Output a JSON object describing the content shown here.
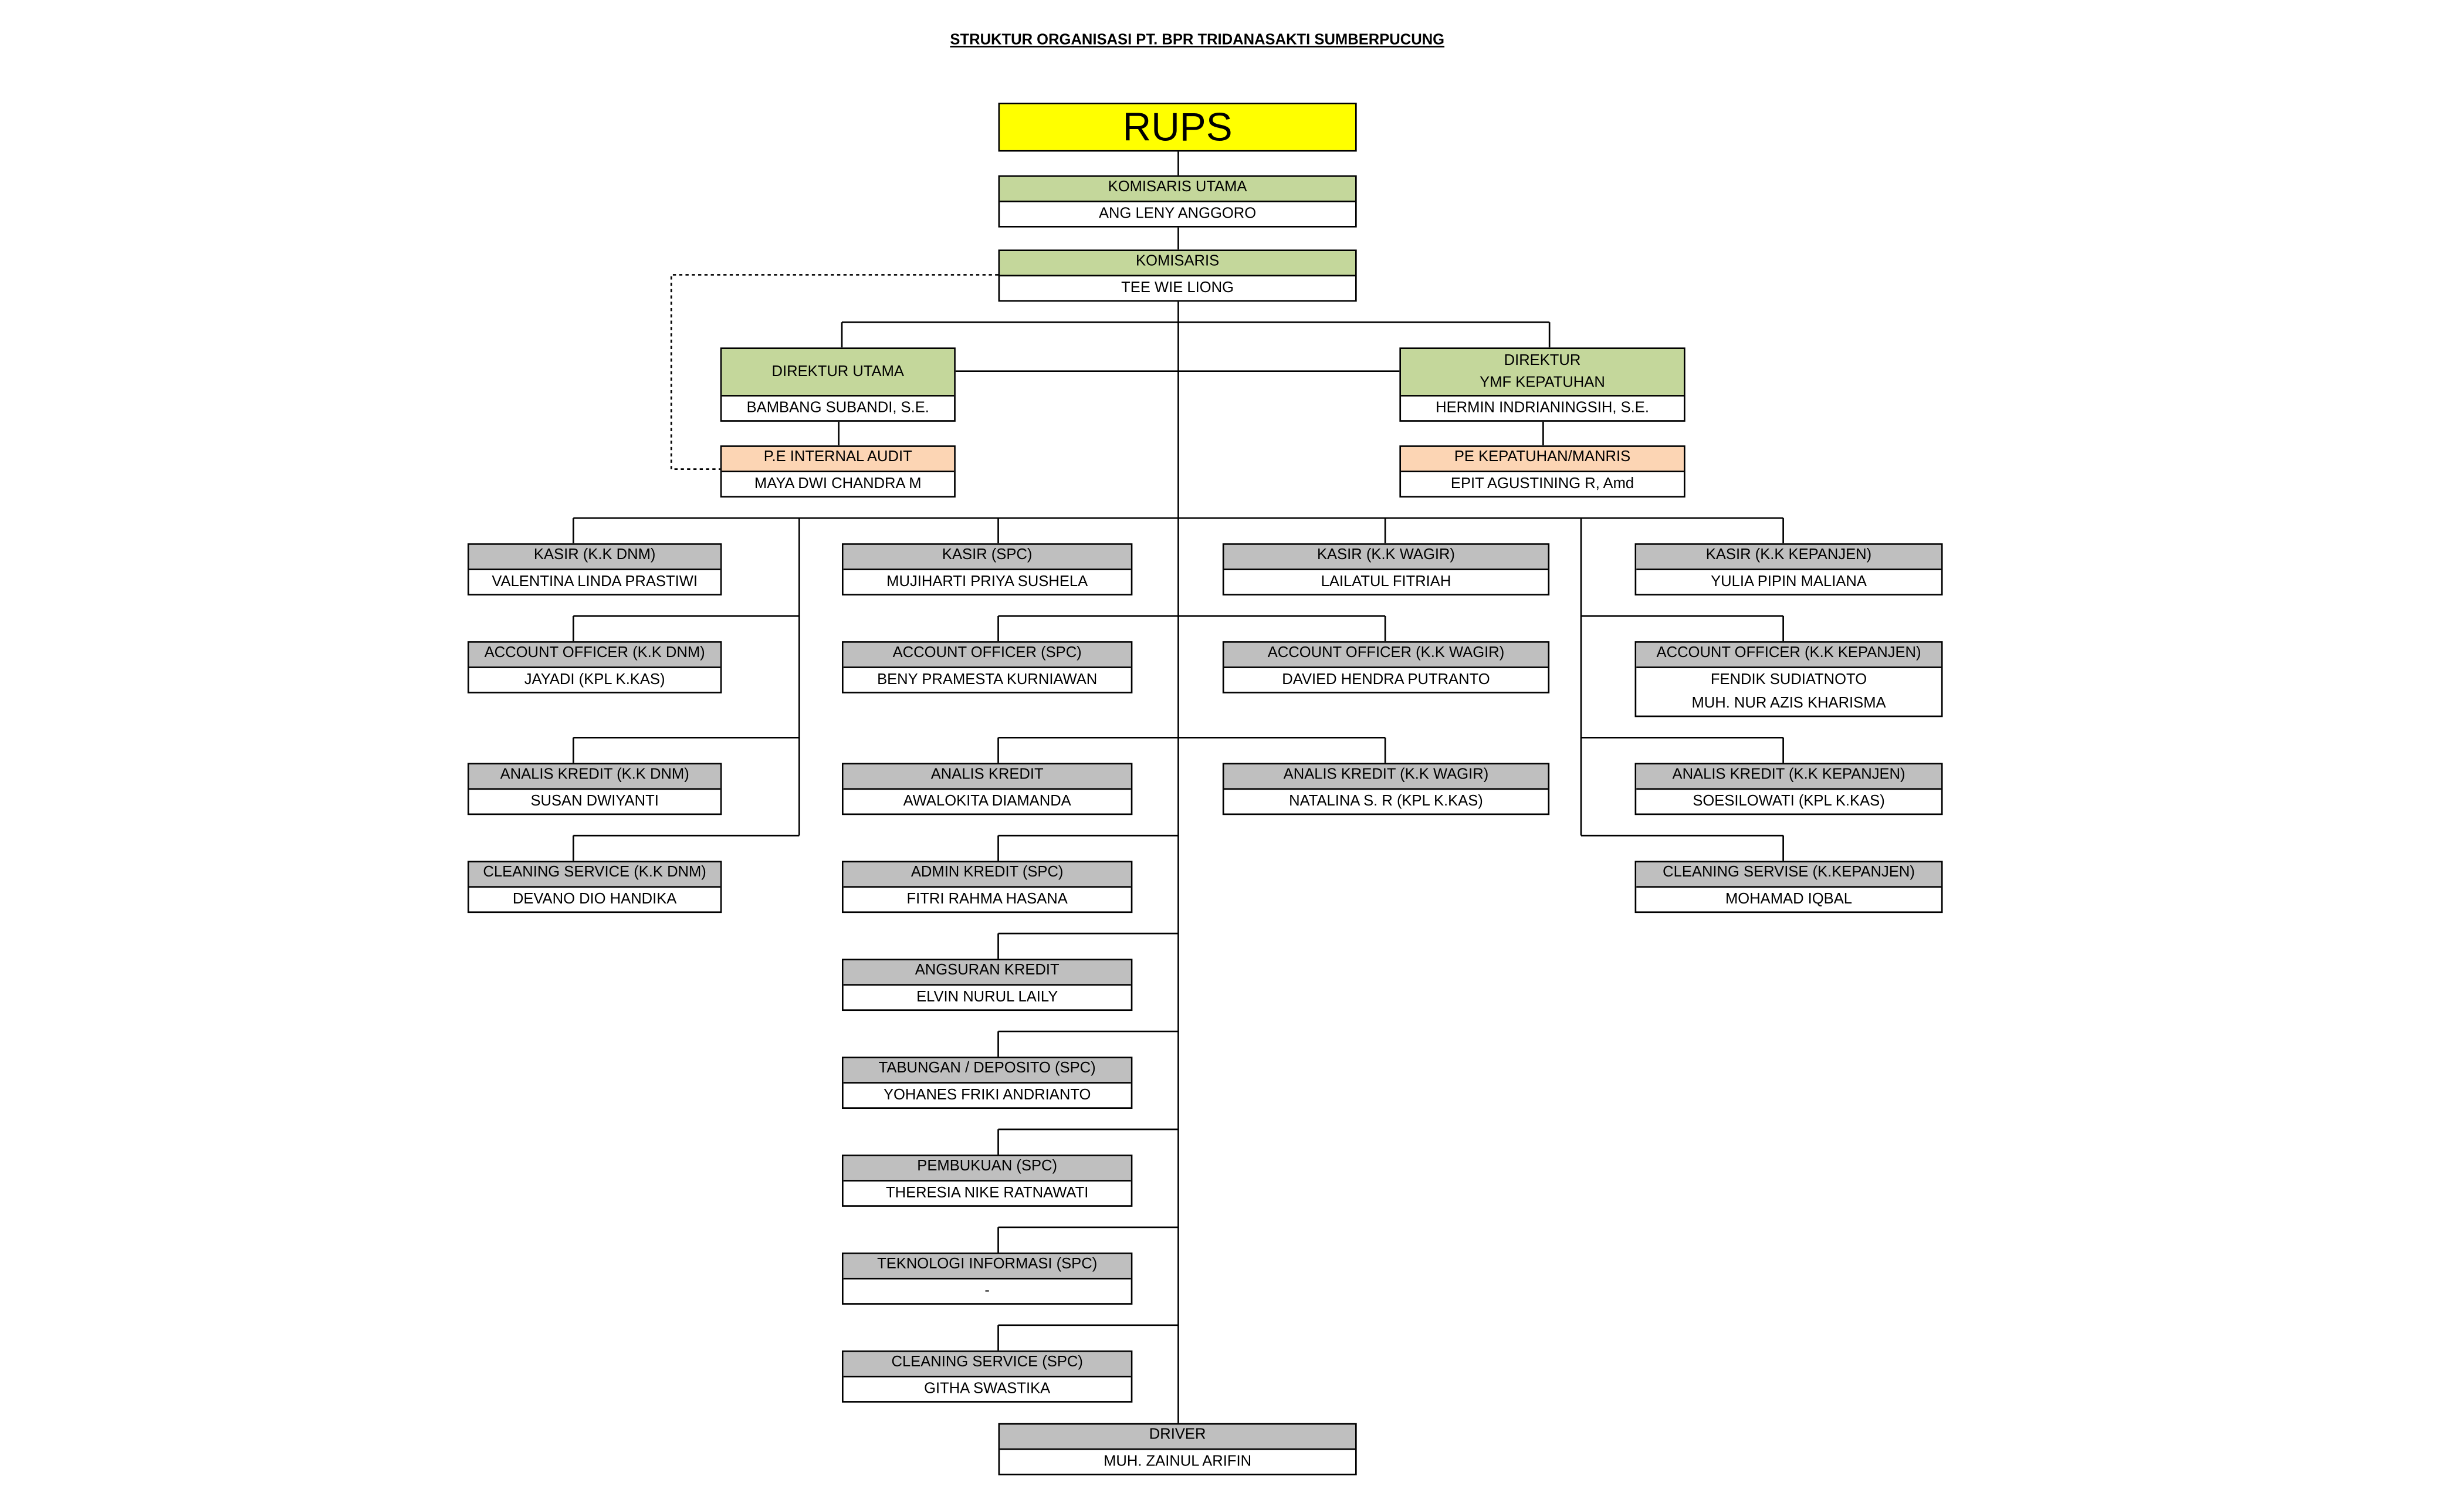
{
  "title": "STRUKTUR ORGANISASI PT. BPR TRIDANASAKTI SUMBERPUCUNG",
  "colors": {
    "rups": "#FFFF00",
    "board": "#C4D79B",
    "audit": "#FCD5B4",
    "staff": "#BFBFBF"
  },
  "boxes": [
    {
      "title": "RUPS",
      "names": [],
      "color": "#FFFF00"
    },
    {
      "title": "KOMISARIS UTAMA",
      "names": [
        "ANG LENY ANGGORO"
      ],
      "color": "#C4D79B"
    },
    {
      "title": "KOMISARIS",
      "names": [
        "TEE WIE LIONG"
      ],
      "color": "#C4D79B"
    },
    {
      "title": "DIREKTUR UTAMA",
      "names": [
        "BAMBANG SUBANDI, S.E."
      ],
      "color": "#C4D79B"
    },
    {
      "title": "DIREKTUR\nYMF KEPATUHAN",
      "names": [
        "HERMIN INDRIANINGSIH, S.E."
      ],
      "color": "#C4D79B"
    },
    {
      "title": "P.E INTERNAL AUDIT",
      "names": [
        "MAYA DWI CHANDRA M"
      ],
      "color": "#FCD5B4"
    },
    {
      "title": "PE KEPATUHAN/MANRIS",
      "names": [
        "EPIT AGUSTINING R, Amd"
      ],
      "color": "#FCD5B4"
    },
    {
      "title": "KASIR (K.K DNM)",
      "names": [
        "VALENTINA LINDA PRASTIWI"
      ],
      "color": "#BFBFBF"
    },
    {
      "title": "ACCOUNT OFFICER (K.K DNM)",
      "names": [
        "JAYADI (KPL K.KAS)"
      ],
      "color": "#BFBFBF"
    },
    {
      "title": "ANALIS KREDIT (K.K DNM)",
      "names": [
        "SUSAN DWIYANTI"
      ],
      "color": "#BFBFBF"
    },
    {
      "title": "CLEANING SERVICE (K.K DNM)",
      "names": [
        "DEVANO DIO HANDIKA"
      ],
      "color": "#BFBFBF"
    },
    {
      "title": "KASIR (SPC)",
      "names": [
        "MUJIHARTI PRIYA SUSHELA"
      ],
      "color": "#BFBFBF"
    },
    {
      "title": "ACCOUNT OFFICER (SPC)",
      "names": [
        "BENY PRAMESTA KURNIAWAN"
      ],
      "color": "#BFBFBF"
    },
    {
      "title": "ANALIS KREDIT",
      "names": [
        "AWALOKITA DIAMANDA"
      ],
      "color": "#BFBFBF"
    },
    {
      "title": "ADMIN KREDIT (SPC)",
      "names": [
        "FITRI RAHMA HASANA"
      ],
      "color": "#BFBFBF"
    },
    {
      "title": "ANGSURAN KREDIT",
      "names": [
        "ELVIN NURUL LAILY"
      ],
      "color": "#BFBFBF"
    },
    {
      "title": "TABUNGAN / DEPOSITO (SPC)",
      "names": [
        "YOHANES FRIKI ANDRIANTO"
      ],
      "color": "#BFBFBF"
    },
    {
      "title": "PEMBUKUAN (SPC)",
      "names": [
        "THERESIA NIKE RATNAWATI"
      ],
      "color": "#BFBFBF"
    },
    {
      "title": "TEKNOLOGI INFORMASI (SPC)",
      "names": [
        "-"
      ],
      "color": "#BFBFBF"
    },
    {
      "title": "CLEANING SERVICE (SPC)",
      "names": [
        "GITHA SWASTIKA"
      ],
      "color": "#BFBFBF"
    },
    {
      "title": "KASIR (K.K WAGIR)",
      "names": [
        "LAILATUL FITRIAH"
      ],
      "color": "#BFBFBF"
    },
    {
      "title": "ACCOUNT OFFICER (K.K WAGIR)",
      "names": [
        "DAVIED HENDRA PUTRANTO"
      ],
      "color": "#BFBFBF"
    },
    {
      "title": "ANALIS KREDIT (K.K WAGIR)",
      "names": [
        "NATALINA S. R (KPL K.KAS)"
      ],
      "color": "#BFBFBF"
    },
    {
      "title": "KASIR (K.K KEPANJEN)",
      "names": [
        "YULIA PIPIN MALIANA"
      ],
      "color": "#BFBFBF"
    },
    {
      "title": "ACCOUNT OFFICER (K.K KEPANJEN)",
      "names": [
        "FENDIK SUDIATNOTO",
        "MUH. NUR AZIS KHARISMA"
      ],
      "color": "#BFBFBF"
    },
    {
      "title": "ANALIS KREDIT (K.K KEPANJEN)",
      "names": [
        "SOESILOWATI (KPL K.KAS)"
      ],
      "color": "#BFBFBF"
    },
    {
      "title": "CLEANING SERVISE (K.KEPANJEN)",
      "names": [
        "MOHAMAD IQBAL"
      ],
      "color": "#BFBFBF"
    },
    {
      "title": "DRIVER",
      "names": [
        "MUH. ZAINUL ARIFIN"
      ],
      "color": "#BFBFBF"
    }
  ]
}
